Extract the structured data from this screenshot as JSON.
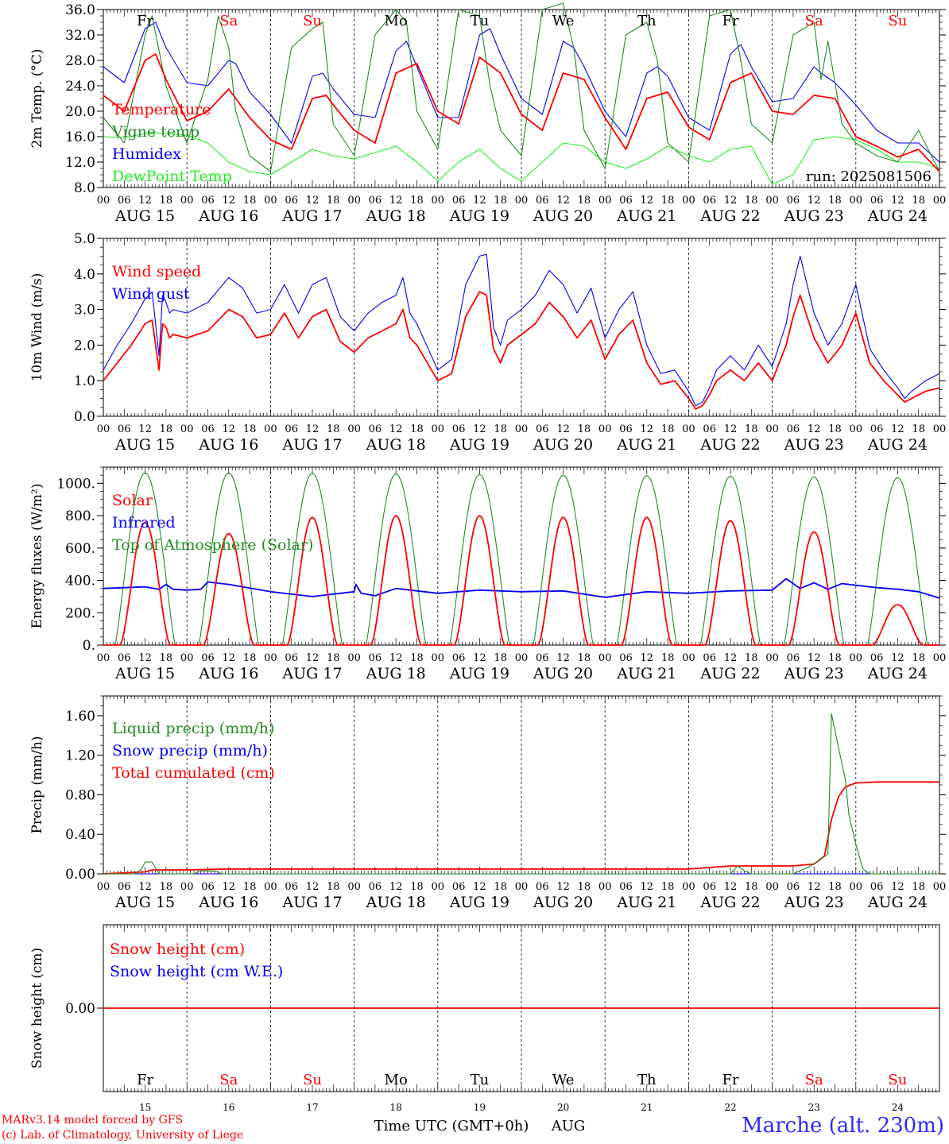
{
  "chart_data": [
    {
      "type": "line",
      "ylabel": "2m Temp. (°C)",
      "ylim": [
        8,
        36
      ],
      "yticks": [
        "8.0",
        "12.0",
        "16.0",
        "20.0",
        "24.0",
        "28.0",
        "32.0",
        "36.0"
      ],
      "run_label": "run: 2025081506",
      "x_unit": "hours since AUG 15 00 UTC",
      "series": [
        {
          "name": "Temperature",
          "color": "#ff0000",
          "x": [
            0,
            6,
            12,
            15,
            18,
            24,
            30,
            36,
            38,
            42,
            48,
            54,
            60,
            64,
            66,
            72,
            78,
            84,
            90,
            96,
            102,
            108,
            114,
            120,
            126,
            132,
            138,
            144,
            150,
            156,
            162,
            168,
            174,
            180,
            186,
            192,
            198,
            204,
            210,
            216,
            222,
            228,
            234,
            240
          ],
          "y": [
            22.5,
            20,
            28,
            29,
            25,
            18.5,
            20,
            23.5,
            22,
            19,
            15.5,
            14,
            22,
            22.5,
            21,
            17,
            15,
            26,
            27.5,
            20,
            18,
            28.5,
            26,
            19.5,
            17,
            26,
            25,
            19,
            14,
            22,
            23,
            17.5,
            15.5,
            24.5,
            26,
            20,
            19.5,
            22.5,
            22,
            16,
            14.5,
            12.8,
            14,
            10.5
          ]
        },
        {
          "name": "Vigne temp",
          "color": "#228b22",
          "x": [
            0,
            6,
            12,
            14,
            18,
            24,
            30,
            33,
            36,
            38,
            42,
            48,
            54,
            60,
            63,
            66,
            72,
            78,
            84,
            87,
            90,
            96,
            102,
            108,
            111,
            114,
            120,
            126,
            132,
            135,
            138,
            144,
            150,
            156,
            159,
            162,
            168,
            174,
            180,
            183,
            186,
            192,
            198,
            204,
            206,
            208,
            212,
            216,
            222,
            228,
            234,
            240
          ],
          "y": [
            19,
            15,
            32,
            35,
            24,
            15,
            25,
            35,
            30,
            20,
            13,
            10.5,
            30,
            33,
            34,
            18,
            13,
            32,
            36,
            34,
            20,
            14,
            36,
            35,
            24,
            17,
            13,
            36,
            37,
            30,
            17,
            11,
            32,
            34,
            28,
            15,
            12,
            35,
            36,
            28,
            18,
            15,
            32,
            34,
            25,
            31,
            18,
            15,
            13,
            12,
            17,
            10.5
          ]
        },
        {
          "name": "Humidex",
          "color": "#0000ff",
          "x": [
            0,
            6,
            12,
            15,
            18,
            24,
            30,
            36,
            38,
            42,
            48,
            54,
            60,
            63,
            66,
            72,
            78,
            84,
            87,
            90,
            96,
            102,
            108,
            111,
            114,
            120,
            126,
            132,
            135,
            138,
            144,
            150,
            156,
            159,
            162,
            168,
            174,
            180,
            183,
            186,
            192,
            198,
            204,
            206,
            210,
            216,
            222,
            228,
            234,
            240
          ],
          "y": [
            27,
            24.5,
            33,
            34,
            30,
            24.5,
            24,
            28,
            27.5,
            23,
            19.5,
            15,
            25.5,
            26,
            23.5,
            19.5,
            19,
            29.5,
            31,
            27,
            19,
            19,
            32,
            33,
            29,
            22,
            19.5,
            31,
            30,
            27,
            20,
            16,
            26,
            27,
            25.5,
            19,
            17,
            29,
            30.5,
            27,
            21.5,
            22,
            27,
            26,
            24.5,
            21,
            17,
            15,
            15,
            12
          ]
        },
        {
          "name": "DewPoint Temp",
          "color": "#22ee22",
          "x": [
            0,
            6,
            12,
            18,
            24,
            30,
            36,
            42,
            48,
            54,
            60,
            66,
            72,
            78,
            84,
            90,
            96,
            102,
            108,
            114,
            120,
            126,
            132,
            138,
            144,
            150,
            156,
            162,
            168,
            174,
            180,
            186,
            192,
            198,
            204,
            210,
            216,
            222,
            228,
            234,
            240
          ],
          "y": [
            16,
            15.8,
            16.5,
            16.5,
            16.2,
            15,
            12,
            10.5,
            10,
            12,
            14,
            13,
            12.5,
            13.5,
            14.5,
            12,
            9,
            12,
            14,
            11,
            9,
            12,
            15,
            14.5,
            12,
            11,
            12.5,
            14.5,
            13,
            12,
            14,
            14.5,
            8.5,
            10,
            15.5,
            16,
            15.5,
            14,
            12,
            12,
            11
          ]
        }
      ]
    },
    {
      "type": "line",
      "ylabel": "10m Wind (m/s)",
      "ylim": [
        0,
        5
      ],
      "yticks": [
        "0.0",
        "1.0",
        "2.0",
        "3.0",
        "4.0",
        "5.0"
      ],
      "series": [
        {
          "name": "Wind speed",
          "color": "#ff0000",
          "x": [
            0,
            4,
            8,
            12,
            14,
            16,
            17,
            18,
            19,
            20,
            24,
            30,
            36,
            40,
            44,
            48,
            52,
            56,
            60,
            64,
            68,
            72,
            76,
            80,
            84,
            86,
            88,
            90,
            96,
            100,
            104,
            108,
            110,
            112,
            114,
            116,
            120,
            124,
            128,
            132,
            136,
            140,
            144,
            148,
            152,
            156,
            160,
            164,
            168,
            170,
            172,
            174,
            176,
            180,
            184,
            188,
            192,
            196,
            198,
            200,
            204,
            208,
            212,
            216,
            220,
            224,
            228,
            230,
            232,
            236,
            240
          ],
          "y": [
            1,
            1.5,
            2,
            2.6,
            2.7,
            1.3,
            2.6,
            2.5,
            2.2,
            2.3,
            2.2,
            2.4,
            3,
            2.8,
            2.2,
            2.3,
            2.9,
            2.2,
            2.8,
            3,
            2.1,
            1.8,
            2.2,
            2.4,
            2.6,
            3,
            2.2,
            2,
            1,
            1.2,
            2.8,
            3.5,
            3.4,
            1.9,
            1.5,
            2,
            2.3,
            2.6,
            3.2,
            2.8,
            2.2,
            2.7,
            1.6,
            2.3,
            2.7,
            1.5,
            0.9,
            1,
            0.5,
            0.2,
            0.3,
            0.6,
            1,
            1.3,
            1,
            1.5,
            1,
            2,
            2.8,
            3.4,
            2.2,
            1.5,
            2,
            2.9,
            1.5,
            1,
            0.6,
            0.4,
            0.5,
            0.7,
            0.8
          ]
        },
        {
          "name": "Wind gust",
          "color": "#0000ff",
          "x": [
            0,
            4,
            8,
            12,
            14,
            16,
            17,
            18,
            19,
            20,
            24,
            30,
            36,
            40,
            44,
            48,
            52,
            56,
            60,
            64,
            68,
            72,
            76,
            80,
            84,
            86,
            88,
            90,
            96,
            100,
            104,
            108,
            110,
            112,
            114,
            116,
            120,
            124,
            128,
            132,
            136,
            140,
            144,
            148,
            152,
            156,
            160,
            164,
            168,
            170,
            172,
            174,
            176,
            180,
            184,
            188,
            192,
            196,
            198,
            200,
            204,
            208,
            212,
            216,
            220,
            224,
            228,
            230,
            232,
            236,
            240
          ],
          "y": [
            1.3,
            2,
            2.6,
            3.3,
            3.5,
            1.7,
            3.4,
            3.2,
            2.9,
            3,
            2.9,
            3.2,
            3.9,
            3.6,
            2.9,
            3,
            3.7,
            2.9,
            3.7,
            3.9,
            2.8,
            2.4,
            2.9,
            3.2,
            3.4,
            3.9,
            2.9,
            2.6,
            1.3,
            1.6,
            3.7,
            4.5,
            4.55,
            2.5,
            2,
            2.7,
            3,
            3.4,
            4.1,
            3.7,
            2.9,
            3.6,
            2.2,
            3,
            3.5,
            2,
            1.2,
            1.3,
            0.7,
            0.3,
            0.4,
            0.8,
            1.3,
            1.7,
            1.3,
            2,
            1.4,
            2.6,
            3.7,
            4.5,
            2.9,
            2,
            2.6,
            3.7,
            1.9,
            1.3,
            0.8,
            0.5,
            0.7,
            1,
            1.2
          ]
        }
      ]
    },
    {
      "type": "line",
      "ylabel": "Energy fluxes (W/m²)",
      "ylim": [
        0,
        1100
      ],
      "yticks": [
        "0.",
        "200.",
        "400.",
        "600.",
        "800.",
        "1000."
      ],
      "series": [
        {
          "name": "Solar",
          "color": "#ff0000",
          "peaks": [
            760,
            690,
            790,
            800,
            800,
            790,
            790,
            770,
            700,
            250
          ],
          "noon_offset": 12
        },
        {
          "name": "Infrared",
          "color": "#0000ff",
          "x": [
            0,
            12,
            16,
            18,
            20,
            24,
            28,
            30,
            36,
            48,
            60,
            72,
            72.5,
            74,
            78,
            84,
            96,
            108,
            120,
            132,
            144,
            156,
            168,
            180,
            192,
            196,
            200,
            204,
            208,
            212,
            216,
            222,
            228,
            234,
            240
          ],
          "y": [
            350,
            360,
            345,
            375,
            345,
            340,
            345,
            390,
            375,
            330,
            300,
            330,
            375,
            320,
            305,
            350,
            320,
            340,
            330,
            335,
            295,
            330,
            320,
            335,
            340,
            410,
            350,
            385,
            345,
            380,
            370,
            355,
            345,
            330,
            290
          ]
        },
        {
          "name": "Top of Atmosphere (Solar)",
          "color": "#228b22",
          "peaks": [
            1065,
            1065,
            1062,
            1058,
            1055,
            1050,
            1048,
            1045,
            1040,
            1035
          ],
          "noon_offset": 12
        }
      ]
    },
    {
      "type": "line",
      "ylabel": "Precip (mm/h)",
      "ylim": [
        0,
        1.8
      ],
      "yticks": [
        "0.00",
        "0.40",
        "0.80",
        "1.20",
        "1.60"
      ],
      "series": [
        {
          "name": "Liquid precip (mm/h)",
          "color": "#228b22",
          "x": [
            0,
            9,
            11,
            12,
            14,
            16,
            24,
            26,
            28,
            30,
            32,
            34,
            36,
            168,
            180,
            182,
            184,
            186,
            188,
            192,
            198,
            203,
            206,
            208,
            209,
            211,
            213,
            214,
            216,
            218,
            220,
            222,
            240
          ],
          "y": [
            0,
            0,
            0.05,
            0.12,
            0.12,
            0,
            0,
            0,
            0.03,
            0.03,
            0.03,
            0,
            0,
            0,
            0,
            0.08,
            0.03,
            0,
            0,
            0,
            0,
            0.08,
            0.15,
            0.2,
            1.62,
            1.28,
            0.95,
            0.6,
            0.3,
            0.05,
            0,
            0,
            0
          ]
        },
        {
          "name": "Snow precip (mm/h)",
          "color": "#0000ff",
          "x": [
            0,
            240
          ],
          "y": [
            0,
            0
          ]
        },
        {
          "name": "Total cumulated (cm)",
          "color": "#ff0000",
          "x": [
            0,
            12,
            14,
            24,
            36,
            168,
            180,
            198,
            204,
            207,
            209,
            211,
            213,
            216,
            222,
            240
          ],
          "y": [
            0,
            0.02,
            0.04,
            0.04,
            0.05,
            0.05,
            0.08,
            0.08,
            0.1,
            0.18,
            0.55,
            0.78,
            0.88,
            0.92,
            0.93,
            0.93
          ]
        }
      ]
    },
    {
      "type": "line",
      "ylabel": "Snow height (cm)",
      "ylim": [
        -1,
        1
      ],
      "yticks": [
        "0.00"
      ],
      "series": [
        {
          "name": "Snow height (cm)",
          "color": "#ff0000",
          "x": [
            0,
            240
          ],
          "y": [
            0,
            0
          ]
        },
        {
          "name": "Snow height (cm W.E.)",
          "color": "#0000ff",
          "x": [
            0,
            240
          ],
          "y": [
            0,
            0
          ]
        }
      ]
    }
  ],
  "x_axis": {
    "hour_labels": [
      "00",
      "06",
      "12",
      "18"
    ],
    "end_label": "00",
    "dates": [
      "AUG 15",
      "AUG 16",
      "AUG 17",
      "AUG 18",
      "AUG 19",
      "AUG 20",
      "AUG 21",
      "AUG 22",
      "AUG 23",
      "AUG 24"
    ],
    "weekdays": [
      {
        "label": "Fr",
        "color": "#000000"
      },
      {
        "label": "Sa",
        "color": "#ff0000"
      },
      {
        "label": "Su",
        "color": "#ff0000"
      },
      {
        "label": "Mo",
        "color": "#000000"
      },
      {
        "label": "Tu",
        "color": "#000000"
      },
      {
        "label": "We",
        "color": "#000000"
      },
      {
        "label": "Th",
        "color": "#000000"
      },
      {
        "label": "Fr",
        "color": "#000000"
      },
      {
        "label": "Sa",
        "color": "#ff0000"
      },
      {
        "label": "Su",
        "color": "#ff0000"
      }
    ],
    "day_numbers": [
      "15",
      "16",
      "17",
      "18",
      "19",
      "20",
      "21",
      "22",
      "23",
      "24"
    ],
    "title": "Time UTC (GMT+0h)",
    "month": "AUG"
  },
  "footer": {
    "credit_line1": "MARv3.14 model forced by GFS",
    "credit_line2": "(c) Lab. of Climatology, University of Liege",
    "station": "Marche (alt. 230m)"
  }
}
